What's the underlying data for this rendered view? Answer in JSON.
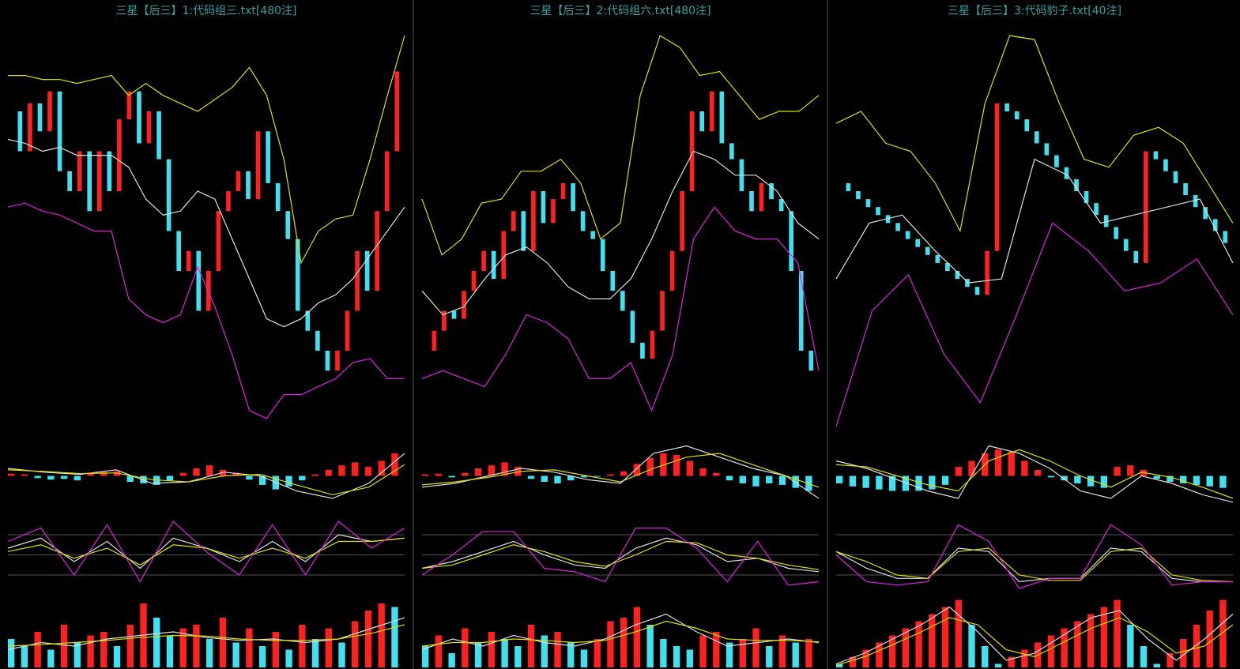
{
  "chart_data": [
    {
      "type": "candlestick",
      "title": "三星【后三】1:代码组三.txt[480注]",
      "up_color": "#ff2020",
      "down_color": "#40e0f0",
      "main": {
        "ylim": [
          0,
          100
        ],
        "candles": [
          80,
          70,
          82,
          75,
          85,
          65,
          60,
          70,
          55,
          70,
          60,
          78,
          85,
          72,
          80,
          68,
          50,
          40,
          45,
          30,
          40,
          55,
          60,
          65,
          58,
          75,
          62,
          55,
          48,
          30,
          25,
          20,
          15,
          20,
          30,
          45,
          35,
          55,
          70,
          90
        ],
        "lines": [
          {
            "color": "#e0e000",
            "values": [
              89,
              89,
              88,
              88,
              87,
              88,
              89,
              84,
              87,
              84,
              82,
              80,
              83,
              86,
              91,
              84,
              68,
              42,
              50,
              53,
              54,
              68,
              84,
              99
            ]
          },
          {
            "color": "#e0e0e0",
            "values": [
              73,
              72,
              70,
              71,
              69,
              69,
              69,
              66,
              58,
              54,
              55,
              60,
              58,
              48,
              38,
              28,
              26,
              28,
              32,
              34,
              38,
              44,
              50,
              56
            ]
          },
          {
            "color": "#e020e0",
            "values": [
              56,
              57,
              55,
              54,
              52,
              50,
              50,
              33,
              29,
              27,
              29,
              41,
              31,
              19,
              5,
              3,
              9,
              9,
              11,
              13,
              17,
              18,
              13,
              13
            ]
          }
        ]
      },
      "macd": {
        "ylim": [
          -50,
          50
        ],
        "bars": [
          3,
          2,
          -3,
          -5,
          -4,
          -6,
          3,
          5,
          6,
          -8,
          -10,
          -12,
          -6,
          4,
          10,
          14,
          8,
          4,
          -5,
          -12,
          -18,
          -14,
          -6,
          2,
          8,
          14,
          18,
          12,
          20,
          30
        ],
        "lines": [
          {
            "color": "#e0e0e0",
            "values": [
              10,
              5,
              2,
              8,
              -10,
              -8,
              5,
              0,
              -20,
              -30,
              -10,
              30
            ]
          },
          {
            "color": "#e0e000",
            "values": [
              8,
              6,
              3,
              4,
              -5,
              -8,
              0,
              2,
              -12,
              -25,
              -15,
              15
            ]
          }
        ]
      },
      "kdj": {
        "ylim": [
          0,
          100
        ],
        "yticks": [
          20,
          50,
          80
        ],
        "lines": [
          {
            "color": "#e0e0e0",
            "values": [
              60,
              75,
              40,
              70,
              30,
              75,
              60,
              40,
              70,
              40,
              80,
              70,
              75
            ]
          },
          {
            "color": "#e0e000",
            "values": [
              55,
              65,
              45,
              60,
              35,
              65,
              60,
              45,
              60,
              45,
              70,
              70,
              75
            ]
          },
          {
            "color": "#e020e0",
            "values": [
              70,
              90,
              20,
              95,
              10,
              100,
              55,
              20,
              95,
              20,
              100,
              60,
              90
            ]
          }
        ]
      },
      "volume": {
        "ylim": [
          0,
          100
        ],
        "bars": [
          40,
          30,
          50,
          25,
          60,
          35,
          45,
          50,
          30,
          60,
          90,
          70,
          45,
          55,
          60,
          40,
          70,
          35,
          55,
          30,
          50,
          25,
          60,
          40,
          55,
          35,
          65,
          80,
          90,
          85
        ],
        "lines": [
          {
            "color": "#e0e0e0",
            "values": [
              25,
              35,
              30,
              40,
              45,
              50,
              42,
              38,
              40,
              35,
              40,
              55,
              70
            ]
          },
          {
            "color": "#e0e000",
            "values": [
              30,
              32,
              35,
              38,
              42,
              45,
              44,
              40,
              38,
              38,
              40,
              48,
              60
            ]
          }
        ]
      }
    },
    {
      "type": "candlestick",
      "title": "三星【后三】2:代码组六.txt[480注]",
      "up_color": "#ff2020",
      "down_color": "#40e0f0",
      "main": {
        "ylim": [
          0,
          100
        ],
        "candles": [
          20,
          25,
          30,
          28,
          35,
          40,
          45,
          38,
          50,
          55,
          45,
          60,
          52,
          58,
          62,
          55,
          50,
          48,
          40,
          35,
          30,
          22,
          18,
          25,
          35,
          45,
          60,
          80,
          75,
          85,
          72,
          68,
          60,
          55,
          62,
          58,
          55,
          40,
          20,
          15
        ],
        "lines": [
          {
            "color": "#e0e000",
            "values": [
              58,
              44,
              48,
              57,
              58,
              65,
              65,
              68,
              62,
              48,
              52,
              84,
              99,
              96,
              89,
              90,
              84,
              78,
              80,
              80,
              84
            ]
          },
          {
            "color": "#e0e0e0",
            "values": [
              35,
              29,
              31,
              38,
              44,
              46,
              42,
              36,
              33,
              33,
              38,
              48,
              60,
              70,
              68,
              64,
              64,
              60,
              52,
              48
            ]
          },
          {
            "color": "#e020e0",
            "values": [
              13,
              15,
              13,
              11,
              19,
              29,
              27,
              23,
              13,
              13,
              17,
              5,
              19,
              48,
              56,
              50,
              48,
              48,
              42,
              15
            ]
          }
        ]
      },
      "macd": {
        "ylim": [
          -50,
          50
        ],
        "bars": [
          2,
          3,
          -2,
          4,
          10,
          14,
          18,
          12,
          -4,
          -8,
          -10,
          -6,
          -2,
          -1,
          2,
          6,
          16,
          24,
          30,
          28,
          20,
          10,
          4,
          -6,
          -10,
          -14,
          -10,
          -12,
          -16,
          -20
        ],
        "lines": [
          {
            "color": "#e0e0e0",
            "values": [
              -15,
              -10,
              0,
              10,
              5,
              -5,
              -10,
              30,
              40,
              25,
              10,
              0,
              -30
            ]
          },
          {
            "color": "#e0e000",
            "values": [
              -12,
              -8,
              -2,
              6,
              8,
              0,
              -8,
              10,
              25,
              30,
              15,
              0,
              -15
            ]
          }
        ]
      },
      "kdj": {
        "ylim": [
          0,
          100
        ],
        "yticks": [
          20,
          50,
          80
        ],
        "lines": [
          {
            "color": "#e0e0e0",
            "values": [
              30,
              40,
              55,
              70,
              50,
              35,
              30,
              60,
              75,
              65,
              40,
              45,
              30,
              25
            ]
          },
          {
            "color": "#e0e000",
            "values": [
              30,
              35,
              50,
              65,
              55,
              40,
              33,
              50,
              70,
              68,
              50,
              45,
              35,
              28
            ]
          },
          {
            "color": "#e020e0",
            "values": [
              20,
              50,
              85,
              85,
              30,
              25,
              10,
              90,
              90,
              60,
              10,
              70,
              5,
              10
            ]
          }
        ]
      },
      "volume": {
        "ylim": [
          0,
          100
        ],
        "bars": [
          30,
          45,
          20,
          55,
          35,
          50,
          40,
          30,
          60,
          45,
          50,
          35,
          25,
          40,
          65,
          70,
          85,
          60,
          40,
          30,
          25,
          45,
          50,
          35,
          40,
          55,
          30,
          45,
          35,
          40
        ],
        "lines": [
          {
            "color": "#e0e0e0",
            "values": [
              25,
              40,
              30,
              45,
              35,
              30,
              40,
              60,
              75,
              50,
              30,
              35,
              40,
              35
            ]
          },
          {
            "color": "#e0e000",
            "values": [
              30,
              35,
              35,
              40,
              38,
              35,
              38,
              50,
              65,
              55,
              40,
              38,
              38,
              36
            ]
          }
        ]
      }
    },
    {
      "type": "candlestick",
      "title": "三星【后三】3:代码豹子.txt[40注]",
      "up_color": "#ff2020",
      "down_color": "#40e0f0",
      "main": {
        "ylim": [
          0,
          100
        ],
        "candles": [
          62,
          60,
          58,
          56,
          54,
          52,
          50,
          48,
          46,
          44,
          42,
          40,
          38,
          36,
          34,
          45,
          82,
          80,
          78,
          75,
          72,
          69,
          66,
          63,
          60,
          57,
          54,
          51,
          48,
          45,
          42,
          70,
          68,
          65,
          62,
          59,
          56,
          53,
          50,
          47
        ],
        "lines": [
          {
            "color": "#e0e000",
            "values": [
              77,
              80,
              72,
              70,
              62,
              50,
              82,
              99,
              98,
              82,
              68,
              66,
              74,
              76,
              72,
              62,
              52
            ]
          },
          {
            "color": "#e0e0e0",
            "values": [
              38,
              52,
              54,
              45,
              37,
              38,
              68,
              64,
              52,
              54,
              56,
              58,
              42
            ]
          },
          {
            "color": "#e020e0",
            "values": [
              1,
              30,
              39,
              19,
              7,
              29,
              52,
              45,
              35,
              37,
              43,
              29
            ]
          }
        ]
      },
      "macd": {
        "ylim": [
          -50,
          50
        ],
        "bars": [
          -10,
          -14,
          -16,
          -18,
          -20,
          -20,
          -20,
          -18,
          -12,
          12,
          20,
          30,
          35,
          32,
          20,
          8,
          -2,
          -6,
          -10,
          -14,
          -16,
          12,
          14,
          8,
          -4,
          -8,
          -10,
          -12,
          -14,
          -16
        ],
        "lines": [
          {
            "color": "#e0e0e0",
            "values": [
              20,
              10,
              -5,
              -20,
              -30,
              40,
              30,
              10,
              -20,
              -30,
              0,
              -10,
              -25,
              -35
            ]
          },
          {
            "color": "#e0e000",
            "values": [
              15,
              12,
              0,
              -12,
              -20,
              20,
              35,
              20,
              0,
              -15,
              5,
              -2,
              -15,
              -30
            ]
          }
        ]
      },
      "kdj": {
        "ylim": [
          0,
          100
        ],
        "yticks": [
          20,
          50,
          80
        ],
        "lines": [
          {
            "color": "#e0e0e0",
            "values": [
              55,
              30,
              15,
              15,
              60,
              55,
              10,
              15,
              15,
              60,
              55,
              15,
              10,
              10
            ]
          },
          {
            "color": "#e0e000",
            "values": [
              55,
              40,
              20,
              15,
              55,
              60,
              20,
              12,
              12,
              55,
              60,
              20,
              12,
              10
            ]
          },
          {
            "color": "#e020e0",
            "values": [
              50,
              10,
              5,
              10,
              95,
              70,
              0,
              15,
              15,
              95,
              65,
              5,
              10,
              10
            ]
          }
        ]
      },
      "volume": {
        "ylim": [
          0,
          100
        ],
        "bars": [
          5,
          15,
          25,
          35,
          45,
          55,
          65,
          75,
          85,
          95,
          60,
          30,
          5,
          15,
          25,
          35,
          45,
          55,
          65,
          75,
          85,
          95,
          60,
          30,
          5,
          20,
          40,
          60,
          80,
          95
        ],
        "lines": [
          {
            "color": "#e0e0e0",
            "values": [
              5,
              20,
              40,
              60,
              85,
              50,
              10,
              20,
              45,
              70,
              80,
              40,
              10,
              40,
              75
            ]
          },
          {
            "color": "#e0e000",
            "values": [
              3,
              15,
              32,
              50,
              70,
              60,
              25,
              15,
              35,
              55,
              70,
              50,
              20,
              30,
              60
            ]
          }
        ]
      }
    }
  ]
}
